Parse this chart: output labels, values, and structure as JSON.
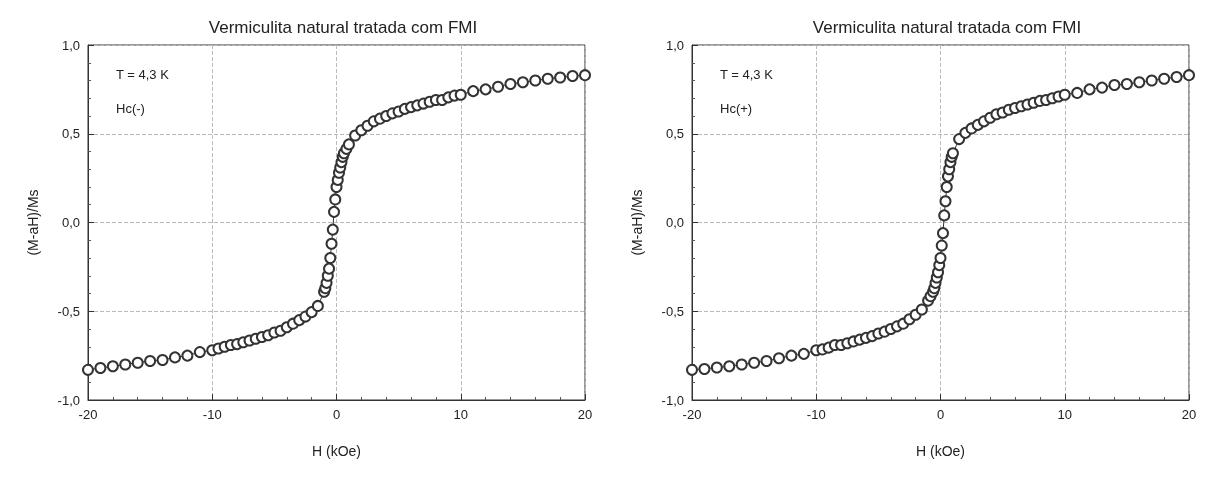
{
  "chart_data": [
    {
      "type": "line",
      "title": "Vermiculita natural tratada com FMI",
      "xlabel": "H (kOe)",
      "ylabel": "(M-aH)/Ms",
      "annotations": [
        "T = 4,3 K",
        "Hc(-)"
      ],
      "color": "#333333",
      "marker": "circle",
      "line_style": "solid",
      "grid": true,
      "x": [
        -20,
        -19,
        -18,
        -17,
        -16,
        -15,
        -14,
        -13,
        -12,
        -11,
        -10,
        -9.5,
        -9,
        -8.5,
        -8,
        -7.5,
        -7,
        -6.5,
        -6,
        -5.5,
        -5,
        -4.5,
        -4,
        -3.5,
        -3,
        -2.5,
        -2,
        -1.5,
        -1,
        -0.9,
        -0.8,
        -0.7,
        -0.6,
        -0.5,
        -0.4,
        -0.3,
        -0.2,
        -0.1,
        0,
        0.1,
        0.2,
        0.3,
        0.4,
        0.5,
        0.6,
        0.8,
        1,
        1.5,
        2,
        2.5,
        3,
        3.5,
        4,
        4.5,
        5,
        5.5,
        6,
        6.5,
        7,
        7.5,
        8,
        8.5,
        9,
        9.5,
        10,
        11,
        12,
        13,
        14,
        15,
        16,
        17,
        18,
        19,
        20
      ],
      "values": [
        -0.83,
        -0.82,
        -0.81,
        -0.8,
        -0.79,
        -0.78,
        -0.775,
        -0.76,
        -0.75,
        -0.73,
        -0.72,
        -0.71,
        -0.7,
        -0.69,
        -0.685,
        -0.675,
        -0.665,
        -0.655,
        -0.645,
        -0.635,
        -0.62,
        -0.61,
        -0.59,
        -0.57,
        -0.55,
        -0.53,
        -0.505,
        -0.47,
        -0.39,
        -0.37,
        -0.34,
        -0.3,
        -0.26,
        -0.2,
        -0.12,
        -0.04,
        0.06,
        0.13,
        0.2,
        0.24,
        0.28,
        0.31,
        0.34,
        0.37,
        0.39,
        0.415,
        0.44,
        0.49,
        0.52,
        0.545,
        0.57,
        0.585,
        0.6,
        0.615,
        0.625,
        0.64,
        0.65,
        0.66,
        0.67,
        0.68,
        0.69,
        0.69,
        0.705,
        0.715,
        0.72,
        0.74,
        0.75,
        0.765,
        0.78,
        0.79,
        0.8,
        0.81,
        0.817,
        0.825,
        0.83
      ],
      "xlim": [
        -20,
        20
      ],
      "xticks": [
        -20,
        -10,
        0,
        10,
        20
      ],
      "ylim": [
        -1,
        1
      ],
      "yticks": [
        {
          "value": -1,
          "label": "-1,0"
        },
        {
          "value": -0.5,
          "label": "-0,5"
        },
        {
          "value": 0,
          "label": "0,0"
        },
        {
          "value": 0.5,
          "label": "0,5"
        },
        {
          "value": 1,
          "label": "1,0"
        }
      ]
    },
    {
      "type": "line",
      "title": "Vermiculita natural tratada com FMI",
      "xlabel": "H (kOe)",
      "ylabel": "(M-aH)/Ms",
      "annotations": [
        "T = 4,3 K",
        "Hc(+)"
      ],
      "color": "#333333",
      "marker": "circle",
      "line_style": "solid",
      "grid": true,
      "x": [
        -20,
        -19,
        -18,
        -17,
        -16,
        -15,
        -14,
        -13,
        -12,
        -11,
        -10,
        -9.5,
        -9,
        -8.5,
        -8,
        -7.5,
        -7,
        -6.5,
        -6,
        -5.5,
        -5,
        -4.5,
        -4,
        -3.5,
        -3,
        -2.5,
        -2,
        -1.5,
        -1,
        -0.8,
        -0.6,
        -0.5,
        -0.4,
        -0.3,
        -0.2,
        -0.1,
        0,
        0.1,
        0.2,
        0.3,
        0.4,
        0.5,
        0.6,
        0.7,
        0.8,
        0.9,
        1,
        1.5,
        2,
        2.5,
        3,
        3.5,
        4,
        4.5,
        5,
        5.5,
        6,
        6.5,
        7,
        7.5,
        8,
        8.5,
        9,
        9.5,
        10,
        11,
        12,
        13,
        14,
        15,
        16,
        17,
        18,
        19,
        20
      ],
      "values": [
        -0.83,
        -0.825,
        -0.817,
        -0.81,
        -0.8,
        -0.79,
        -0.78,
        -0.765,
        -0.75,
        -0.74,
        -0.72,
        -0.715,
        -0.705,
        -0.69,
        -0.69,
        -0.68,
        -0.67,
        -0.66,
        -0.65,
        -0.64,
        -0.625,
        -0.615,
        -0.6,
        -0.585,
        -0.57,
        -0.545,
        -0.52,
        -0.49,
        -0.44,
        -0.415,
        -0.39,
        -0.37,
        -0.34,
        -0.31,
        -0.28,
        -0.24,
        -0.2,
        -0.13,
        -0.06,
        0.04,
        0.12,
        0.2,
        0.26,
        0.3,
        0.34,
        0.37,
        0.39,
        0.47,
        0.505,
        0.53,
        0.55,
        0.57,
        0.59,
        0.61,
        0.62,
        0.635,
        0.645,
        0.655,
        0.665,
        0.675,
        0.685,
        0.69,
        0.7,
        0.71,
        0.72,
        0.73,
        0.75,
        0.76,
        0.775,
        0.78,
        0.79,
        0.8,
        0.81,
        0.82,
        0.83
      ],
      "xlim": [
        -20,
        20
      ],
      "xticks": [
        -20,
        -10,
        0,
        10,
        20
      ],
      "ylim": [
        -1,
        1
      ],
      "yticks": [
        {
          "value": -1,
          "label": "-1,0"
        },
        {
          "value": -0.5,
          "label": "-0,5"
        },
        {
          "value": 0,
          "label": "0,0"
        },
        {
          "value": 0.5,
          "label": "0,5"
        },
        {
          "value": 1,
          "label": "1,0"
        }
      ]
    }
  ]
}
